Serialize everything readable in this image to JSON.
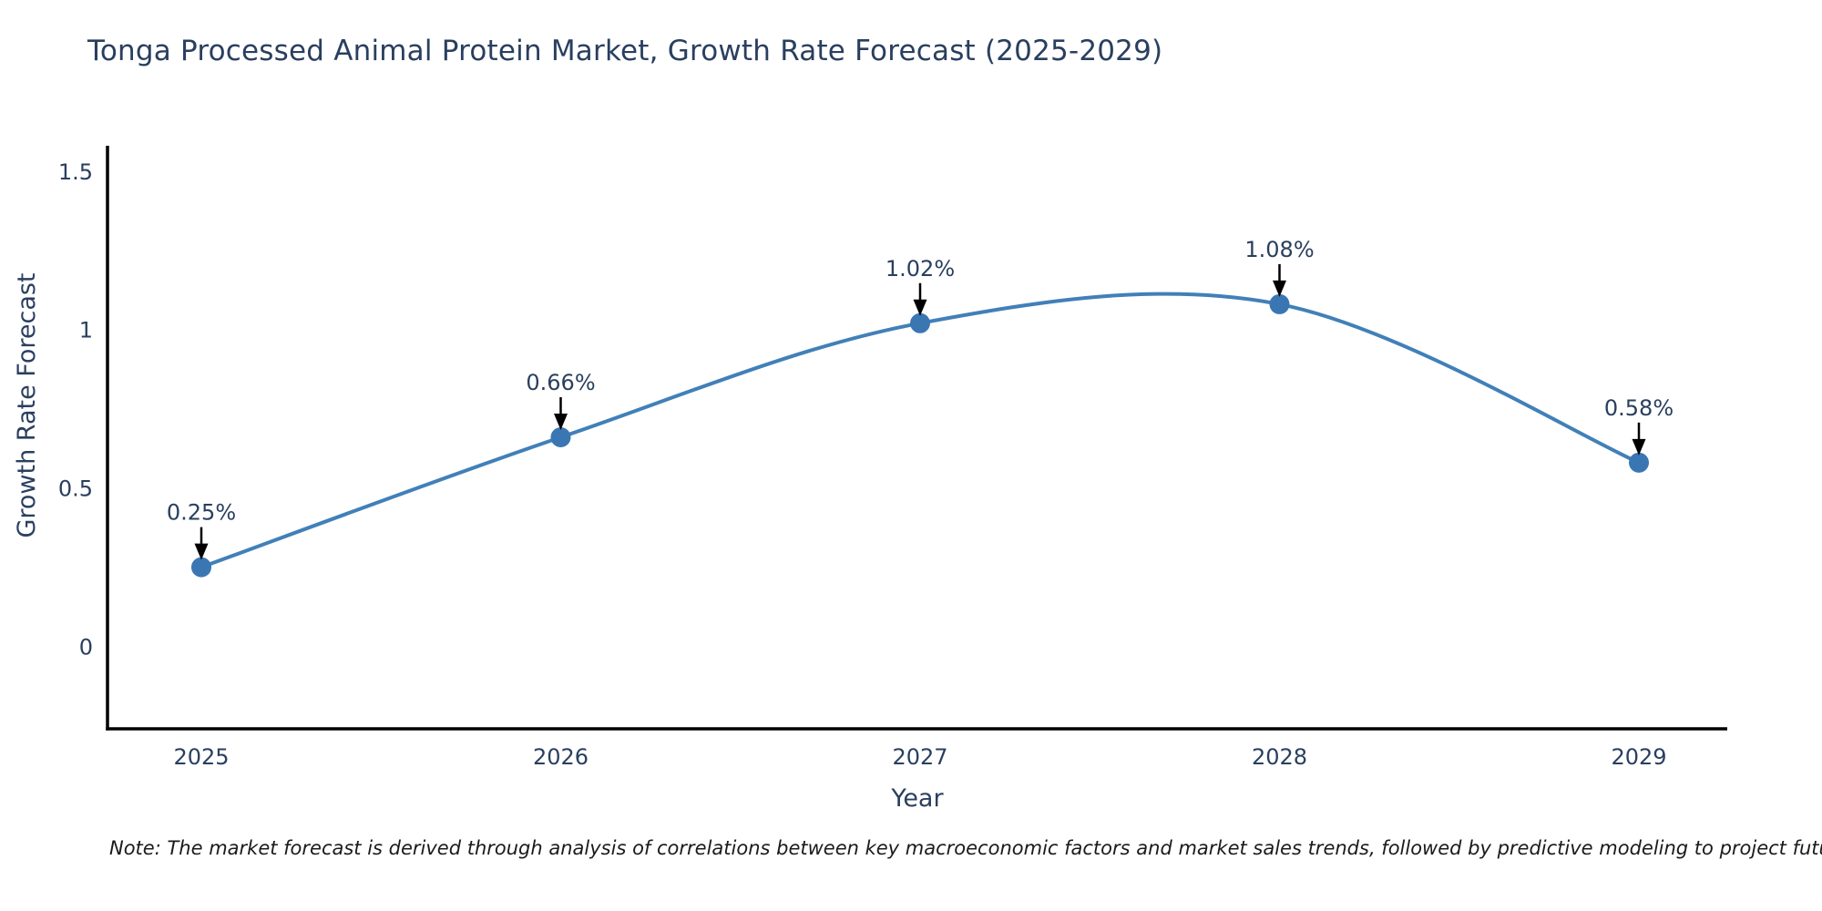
{
  "chart_data": {
    "type": "line",
    "title": "Tonga Processed Animal Protein Market, Growth Rate Forecast (2025-2029)",
    "xlabel": "Year",
    "ylabel": "Growth Rate Forecast",
    "categories": [
      "2025",
      "2026",
      "2027",
      "2028",
      "2029"
    ],
    "values": [
      0.25,
      0.66,
      1.02,
      1.08,
      0.58
    ],
    "point_labels": [
      "0.25%",
      "0.66%",
      "1.02%",
      "1.08%",
      "0.58%"
    ],
    "yticks": [
      0,
      0.5,
      1,
      1.5
    ],
    "ytick_labels": [
      "0",
      "0.5",
      "1",
      "1.5"
    ],
    "ylim": [
      -0.26,
      1.58
    ],
    "line_shape": "spline",
    "grid": false,
    "legend": false,
    "annotation_arrows": true,
    "colors": {
      "line": "#4180b8",
      "marker": "#3a76b2",
      "axis": "#000000",
      "text": "#2a3f5f",
      "arrow": "#000000"
    }
  },
  "note": "Note: The market forecast is derived through analysis of correlations between key macroeconomic factors and market sales trends, followed by predictive modeling to project future sales"
}
